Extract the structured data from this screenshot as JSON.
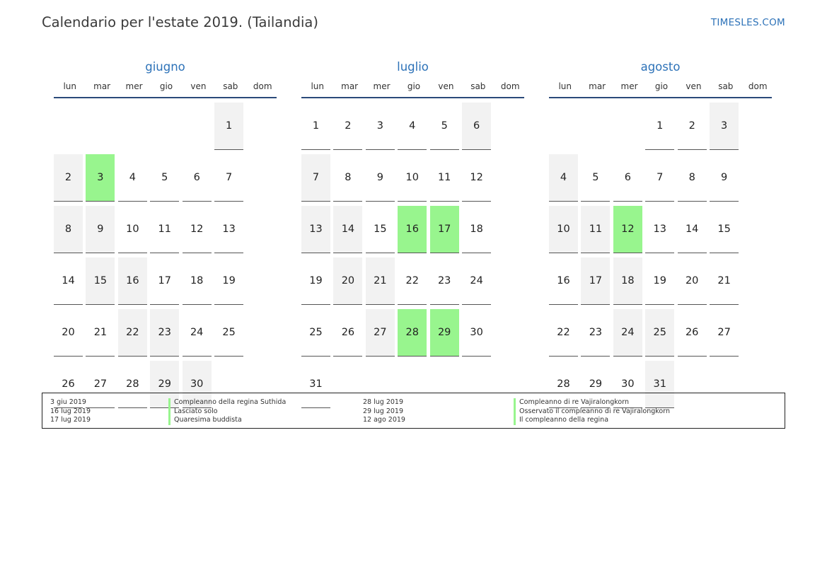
{
  "header": {
    "title": "Calendario per l'estate 2019. (Tailandia)",
    "brand": "TIMESLES.COM"
  },
  "weekdays": [
    "lun",
    "mar",
    "mer",
    "gio",
    "ven",
    "sab",
    "dom"
  ],
  "colors": {
    "holiday": "#98f58e",
    "weekend": "#f2f2f2",
    "accent": "#2d72b8"
  },
  "months": [
    {
      "name": "giugno",
      "lead_blanks": 5,
      "days": [
        "1",
        "2",
        "3",
        "4",
        "5",
        "6",
        "7",
        "8",
        "9",
        "10",
        "11",
        "12",
        "13",
        "14",
        "15",
        "16",
        "17",
        "18",
        "19",
        "20",
        "21",
        "22",
        "23",
        "24",
        "25",
        "26",
        "27",
        "28",
        "29",
        "30"
      ],
      "holidays": [
        "3"
      ]
    },
    {
      "name": "luglio",
      "lead_blanks": 0,
      "days": [
        "1",
        "2",
        "3",
        "4",
        "5",
        "6",
        "7",
        "8",
        "9",
        "10",
        "11",
        "12",
        "13",
        "14",
        "15",
        "16",
        "17",
        "18",
        "19",
        "20",
        "21",
        "22",
        "23",
        "24",
        "25",
        "26",
        "27",
        "28",
        "29",
        "30",
        "31"
      ],
      "holidays": [
        "16",
        "17",
        "28",
        "29"
      ]
    },
    {
      "name": "agosto",
      "lead_blanks": 3,
      "days": [
        "1",
        "2",
        "3",
        "4",
        "5",
        "6",
        "7",
        "8",
        "9",
        "10",
        "11",
        "12",
        "13",
        "14",
        "15",
        "16",
        "17",
        "18",
        "19",
        "20",
        "21",
        "22",
        "23",
        "24",
        "25",
        "26",
        "27",
        "28",
        "29",
        "30",
        "31"
      ],
      "holidays": [
        "12"
      ]
    }
  ],
  "legend": {
    "left": [
      {
        "date": "3 giu 2019",
        "name": "Compleanno della regina Suthida"
      },
      {
        "date": "16 lug 2019",
        "name": "Lasciato solo"
      },
      {
        "date": "17 lug 2019",
        "name": "Quaresima buddista"
      }
    ],
    "right": [
      {
        "date": "28 lug 2019",
        "name": "Compleanno di re Vajiralongkorn"
      },
      {
        "date": "29 lug 2019",
        "name": "Osservato il compleanno di re Vajiralongkorn"
      },
      {
        "date": "12 ago 2019",
        "name": "Il compleanno della regina"
      }
    ]
  }
}
